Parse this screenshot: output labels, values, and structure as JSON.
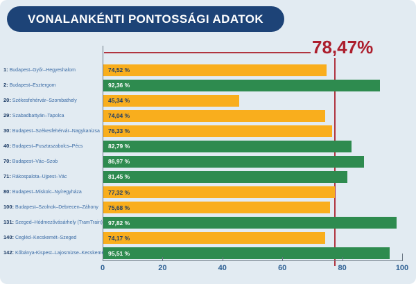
{
  "title": "VONALANKÉNTI PONTOSSÁGI ADATOK",
  "colors": {
    "background": "#e2ebf2",
    "title_bar": "#1d4377",
    "title_text": "#ffffff",
    "bar_above_average": "#2e8b4f",
    "bar_below_average": "#f9ae1d",
    "value_text_on_green": "#ffffff",
    "value_text_on_orange": "#1d3c66",
    "average_line": "#b03440",
    "average_text": "#ac1e2d",
    "category_text": "#3a6ba5",
    "category_number_text": "#1d3c66",
    "axis_line": "#6a7683",
    "tick_text": "#2e6093"
  },
  "chart_data": {
    "type": "bar",
    "orientation": "horizontal",
    "title": "VONALANKÉNTI PONTOSSÁGI ADATOK",
    "average_label": "78,47%",
    "average_value": 78.47,
    "xlim": [
      0,
      100
    ],
    "x_ticks": [
      0,
      20,
      40,
      60,
      80,
      100
    ],
    "grid": false,
    "legend": false,
    "rows": [
      {
        "line": "1",
        "name": "Budapest–Győr–Hegyeshalom",
        "value": 74.52,
        "label": "74,52 %",
        "status": "below"
      },
      {
        "line": "2",
        "name": "Budapest–Esztergom",
        "value": 92.36,
        "label": "92,36 %",
        "status": "above"
      },
      {
        "line": "20",
        "name": "Székesfehérvár–Szombathely",
        "value": 45.34,
        "label": "45,34 %",
        "status": "below"
      },
      {
        "line": "29",
        "name": "Szabadbattyán–Tapolca",
        "value": 74.04,
        "label": "74,04 %",
        "status": "below"
      },
      {
        "line": "30",
        "name": "Budapest–Székesfehérvár–Nagykanizsa",
        "value": 76.33,
        "label": "76,33 %",
        "status": "below"
      },
      {
        "line": "40",
        "name": "Budapest–Pusztaszabolcs–Pécs",
        "value": 82.79,
        "label": "82,79 %",
        "status": "above"
      },
      {
        "line": "70",
        "name": "Budapest–Vác–Szob",
        "value": 86.97,
        "label": "86,97 %",
        "status": "above"
      },
      {
        "line": "71",
        "name": "Rákospalota–Újpest–Vác",
        "value": 81.45,
        "label": "81,45 %",
        "status": "above"
      },
      {
        "line": "80",
        "name": "Budapest–Miskolc–Nyíregyháza",
        "value": 77.32,
        "label": "77,32 %",
        "status": "below"
      },
      {
        "line": "100",
        "name": "Budapest–Szolnok–Debrecen–Záhony",
        "value": 75.68,
        "label": "75,68 %",
        "status": "below"
      },
      {
        "line": "131",
        "name": "Szeged–Hódmezővásárhely (TramTrain)",
        "value": 97.82,
        "label": "97,82 %",
        "status": "above"
      },
      {
        "line": "140",
        "name": "Cegléd–Kecskemét–Szeged",
        "value": 74.17,
        "label": "74,17 %",
        "status": "below"
      },
      {
        "line": "142",
        "name": "Kőbánya-Kispest–Lajosmizse–Kecskemét",
        "value": 95.51,
        "label": "95,51 %",
        "status": "above"
      }
    ]
  }
}
